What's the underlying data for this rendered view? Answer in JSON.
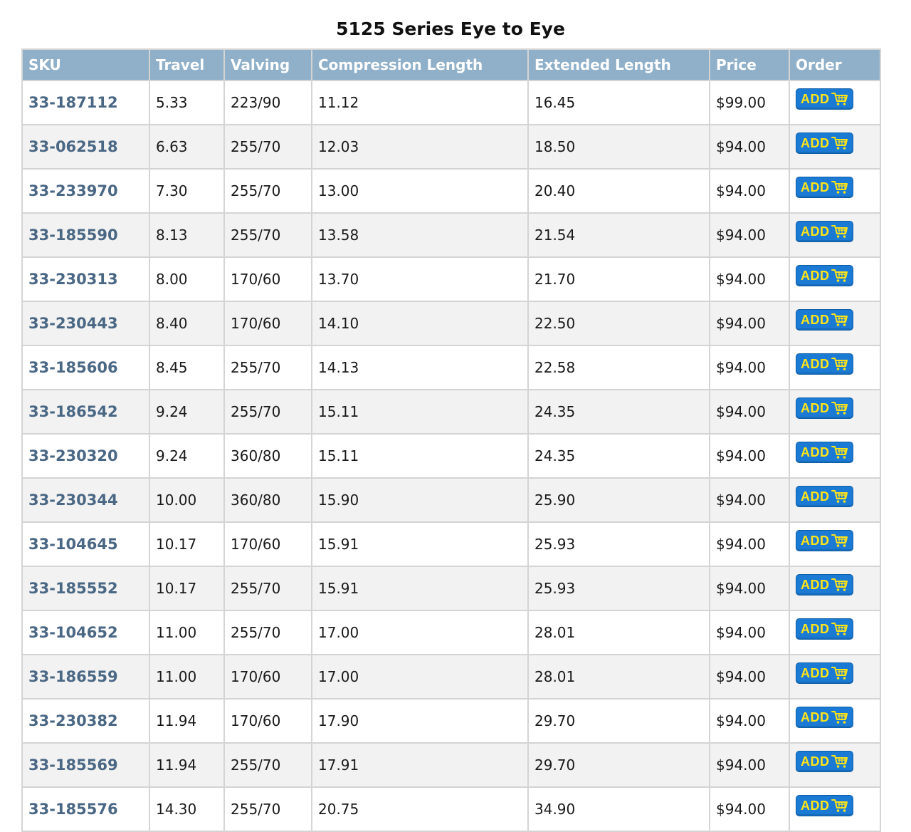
{
  "title": "5125 Series Eye to Eye",
  "colors": {
    "header_bg": "#8fb0c8",
    "sku_text": "#4a6784",
    "button_bg": "#1a7ad4",
    "button_text": "#ffe41a"
  },
  "columns": [
    "SKU",
    "Travel",
    "Valving",
    "Compression Length",
    "Extended Length",
    "Price",
    "Order"
  ],
  "add_label": "ADD",
  "cart_icon": "shopping-cart-icon",
  "rows": [
    {
      "sku": "33-187112",
      "travel": "5.33",
      "valving": "223/90",
      "compression": "11.12",
      "extended": "16.45",
      "price": "$99.00"
    },
    {
      "sku": "33-062518",
      "travel": "6.63",
      "valving": "255/70",
      "compression": "12.03",
      "extended": "18.50",
      "price": "$94.00"
    },
    {
      "sku": "33-233970",
      "travel": "7.30",
      "valving": "255/70",
      "compression": "13.00",
      "extended": "20.40",
      "price": "$94.00"
    },
    {
      "sku": "33-185590",
      "travel": "8.13",
      "valving": "255/70",
      "compression": "13.58",
      "extended": "21.54",
      "price": "$94.00"
    },
    {
      "sku": "33-230313",
      "travel": "8.00",
      "valving": "170/60",
      "compression": "13.70",
      "extended": "21.70",
      "price": "$94.00"
    },
    {
      "sku": "33-230443",
      "travel": "8.40",
      "valving": "170/60",
      "compression": "14.10",
      "extended": "22.50",
      "price": "$94.00"
    },
    {
      "sku": "33-185606",
      "travel": "8.45",
      "valving": "255/70",
      "compression": "14.13",
      "extended": "22.58",
      "price": "$94.00"
    },
    {
      "sku": "33-186542",
      "travel": "9.24",
      "valving": "255/70",
      "compression": "15.11",
      "extended": "24.35",
      "price": "$94.00"
    },
    {
      "sku": "33-230320",
      "travel": "9.24",
      "valving": "360/80",
      "compression": "15.11",
      "extended": "24.35",
      "price": "$94.00"
    },
    {
      "sku": "33-230344",
      "travel": "10.00",
      "valving": "360/80",
      "compression": "15.90",
      "extended": "25.90",
      "price": "$94.00"
    },
    {
      "sku": "33-104645",
      "travel": "10.17",
      "valving": "170/60",
      "compression": "15.91",
      "extended": "25.93",
      "price": "$94.00"
    },
    {
      "sku": "33-185552",
      "travel": "10.17",
      "valving": "255/70",
      "compression": "15.91",
      "extended": "25.93",
      "price": "$94.00"
    },
    {
      "sku": "33-104652",
      "travel": "11.00",
      "valving": "255/70",
      "compression": "17.00",
      "extended": "28.01",
      "price": "$94.00"
    },
    {
      "sku": "33-186559",
      "travel": "11.00",
      "valving": "170/60",
      "compression": "17.00",
      "extended": "28.01",
      "price": "$94.00"
    },
    {
      "sku": "33-230382",
      "travel": "11.94",
      "valving": "170/60",
      "compression": "17.90",
      "extended": "29.70",
      "price": "$94.00"
    },
    {
      "sku": "33-185569",
      "travel": "11.94",
      "valving": "255/70",
      "compression": "17.91",
      "extended": "29.70",
      "price": "$94.00"
    },
    {
      "sku": "33-185576",
      "travel": "14.30",
      "valving": "255/70",
      "compression": "20.75",
      "extended": "34.90",
      "price": "$94.00"
    }
  ]
}
